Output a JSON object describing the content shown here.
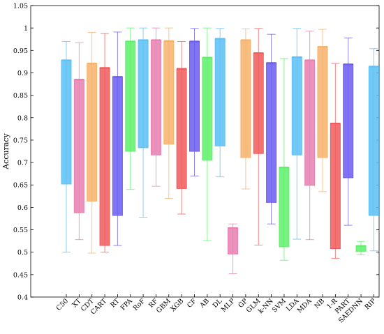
{
  "chart_data": {
    "type": "box",
    "title": "",
    "xlabel": "",
    "ylabel": "Accuracy",
    "ylim": [
      0.4,
      1.05
    ],
    "yticks": [
      0.4,
      0.45,
      0.5,
      0.55,
      0.6,
      0.65,
      0.7,
      0.75,
      0.8,
      0.85,
      0.9,
      0.95,
      1,
      1.05
    ],
    "ytick_labels": [
      "0.4",
      "0.45",
      "0.5",
      "0.55",
      "0.6",
      "0.65",
      "0.7",
      "0.75",
      "0.8",
      "0.85",
      "0.9",
      "0.95",
      "1",
      "1.05"
    ],
    "grid": false,
    "categories": [
      "C50",
      "XT",
      "CDT",
      "CART",
      "RT",
      "FPA",
      "RoF",
      "RF",
      "GBM",
      "XGB",
      "CF",
      "AB",
      "DL",
      "MLP",
      "GP",
      "GLM",
      "k-NN",
      "SVM",
      "LDA",
      "MDA",
      "NB",
      "1-R",
      "PART",
      "SAEDNN",
      "RIP"
    ],
    "boxes": [
      {
        "min": 0.5,
        "q1": 0.652,
        "median": 0.928,
        "q3": 0.928,
        "max": 0.97,
        "color": "#5bc0f5"
      },
      {
        "min": 0.528,
        "q1": 0.588,
        "median": 0.885,
        "q3": 0.885,
        "max": 0.967,
        "color": "#e87fb0"
      },
      {
        "min": 0.498,
        "q1": 0.614,
        "median": 0.921,
        "q3": 0.921,
        "max": 0.99,
        "color": "#f7b26a"
      },
      {
        "min": 0.5,
        "q1": 0.515,
        "median": 0.911,
        "q3": 0.911,
        "max": 0.988,
        "color": "#f05a5a"
      },
      {
        "min": 0.515,
        "q1": 0.582,
        "median": 0.891,
        "q3": 0.891,
        "max": 0.991,
        "color": "#6b5cf0"
      },
      {
        "min": 0.64,
        "q1": 0.725,
        "median": 0.97,
        "q3": 0.97,
        "max": 1.0,
        "color": "#5ef06a"
      },
      {
        "min": 0.578,
        "q1": 0.733,
        "median": 0.973,
        "q3": 0.973,
        "max": 1.0,
        "color": "#5bc0f5"
      },
      {
        "min": 0.647,
        "q1": 0.717,
        "median": 0.973,
        "q3": 0.973,
        "max": 1.0,
        "color": "#e87fb0"
      },
      {
        "min": 0.62,
        "q1": 0.741,
        "median": 0.971,
        "q3": 0.971,
        "max": 1.0,
        "color": "#f7b26a"
      },
      {
        "min": 0.585,
        "q1": 0.642,
        "median": 0.909,
        "q3": 0.909,
        "max": 0.97,
        "color": "#f05a5a"
      },
      {
        "min": 0.67,
        "q1": 0.725,
        "median": 0.97,
        "q3": 0.97,
        "max": 0.999,
        "color": "#6b5cf0"
      },
      {
        "min": 0.526,
        "q1": 0.705,
        "median": 0.934,
        "q3": 0.934,
        "max": 1.0,
        "color": "#5ef06a"
      },
      {
        "min": 0.668,
        "q1": 0.737,
        "median": 0.976,
        "q3": 0.976,
        "max": 0.999,
        "color": "#5bc0f5"
      },
      {
        "min": 0.452,
        "q1": 0.496,
        "median": 0.554,
        "q3": 0.554,
        "max": 0.563,
        "color": "#e87fb0"
      },
      {
        "min": 0.641,
        "q1": 0.711,
        "median": 0.973,
        "q3": 0.973,
        "max": 0.998,
        "color": "#f7b26a"
      },
      {
        "min": 0.516,
        "q1": 0.72,
        "median": 0.944,
        "q3": 0.944,
        "max": 0.999,
        "color": "#f05a5a"
      },
      {
        "min": 0.563,
        "q1": 0.611,
        "median": 0.922,
        "q3": 0.922,
        "max": 0.986,
        "color": "#6b5cf0"
      },
      {
        "min": 0.482,
        "q1": 0.512,
        "median": 0.689,
        "q3": 0.689,
        "max": 0.932,
        "color": "#5ef06a"
      },
      {
        "min": 0.529,
        "q1": 0.717,
        "median": 0.935,
        "q3": 0.935,
        "max": 0.999,
        "color": "#5bc0f5"
      },
      {
        "min": 0.528,
        "q1": 0.649,
        "median": 0.928,
        "q3": 0.928,
        "max": 0.993,
        "color": "#e87fb0"
      },
      {
        "min": 0.635,
        "q1": 0.711,
        "median": 0.958,
        "q3": 0.958,
        "max": 0.997,
        "color": "#f7b26a"
      },
      {
        "min": 0.486,
        "q1": 0.508,
        "median": 0.787,
        "q3": 0.787,
        "max": 0.921,
        "color": "#f05a5a"
      },
      {
        "min": 0.56,
        "q1": 0.666,
        "median": 0.919,
        "q3": 0.919,
        "max": 0.978,
        "color": "#6b5cf0"
      },
      {
        "min": 0.494,
        "q1": 0.502,
        "median": 0.514,
        "q3": 0.514,
        "max": 0.524,
        "color": "#5ef06a"
      },
      {
        "min": 0.503,
        "q1": 0.582,
        "median": 0.914,
        "q3": 0.914,
        "max": 0.954,
        "color": "#5bc0f5"
      }
    ]
  }
}
